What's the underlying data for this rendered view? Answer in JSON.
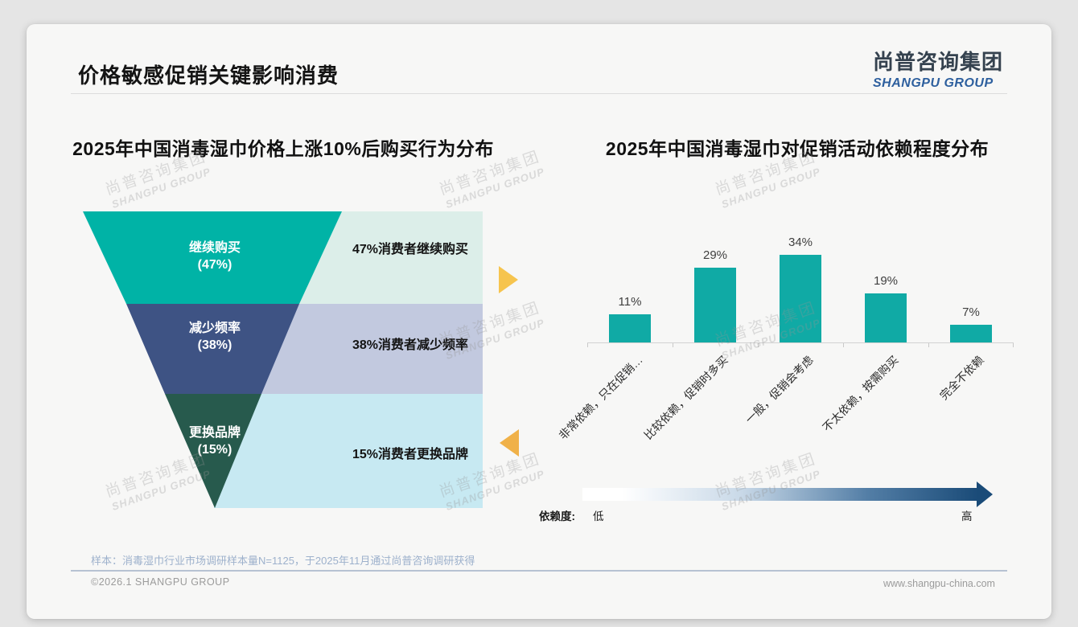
{
  "slide": {
    "title": "价格敏感促销关键影响消费",
    "logo": {
      "cn": "尚普咨询集团",
      "en": "SHANGPU GROUP"
    },
    "watermark": {
      "line1": "尚普咨询集团",
      "line2": "SHANGPU GROUP"
    },
    "footnote": "样本：消毒湿巾行业市场调研样本量N=1125，于2025年11月通过尚普咨询调研获得",
    "footer_left": "©2026.1 SHANGPU GROUP",
    "footer_right": "www.shangpu-china.com",
    "accent_arrow_right": "#f6c44e",
    "accent_arrow_left": "#f0b148"
  },
  "chart_data": [
    {
      "type": "funnel",
      "title": "2025年中国消毒湿巾价格上涨10%后购买行为分布",
      "categories": [
        "继续购买",
        "减少频率",
        "更换品牌"
      ],
      "values": [
        47,
        38,
        15
      ],
      "value_labels": [
        "(47%)",
        "(38%)",
        "(15%)"
      ],
      "annotations": [
        "47%消费者继续购买",
        "38%消费者减少频率",
        "15%消费者更换品牌"
      ],
      "colors": [
        "#00b3a6",
        "#3e5384",
        "#275a4d"
      ],
      "panel_colors": [
        "#dceee9",
        "#c2c9df",
        "#c7e9f2"
      ],
      "label_color": "#ffffff"
    },
    {
      "type": "bar",
      "title": "2025年中国消毒湿巾对促销活动依赖程度分布",
      "categories": [
        "非常依赖，只在促销…",
        "比较依赖，促销时多买",
        "一般，促销会考虑",
        "不太依赖，按需购买",
        "完全不依赖"
      ],
      "values": [
        11,
        29,
        34,
        19,
        7
      ],
      "value_labels": [
        "11%",
        "29%",
        "34%",
        "19%",
        "7%"
      ],
      "bar_color": "#10aaa5",
      "ylim": [
        0,
        40
      ],
      "grid": "off",
      "axis_note": {
        "prefix": "依赖度:",
        "low": "低",
        "high": "高",
        "gradient_start": "#ffffff",
        "gradient_end": "#1a4b78"
      }
    }
  ]
}
